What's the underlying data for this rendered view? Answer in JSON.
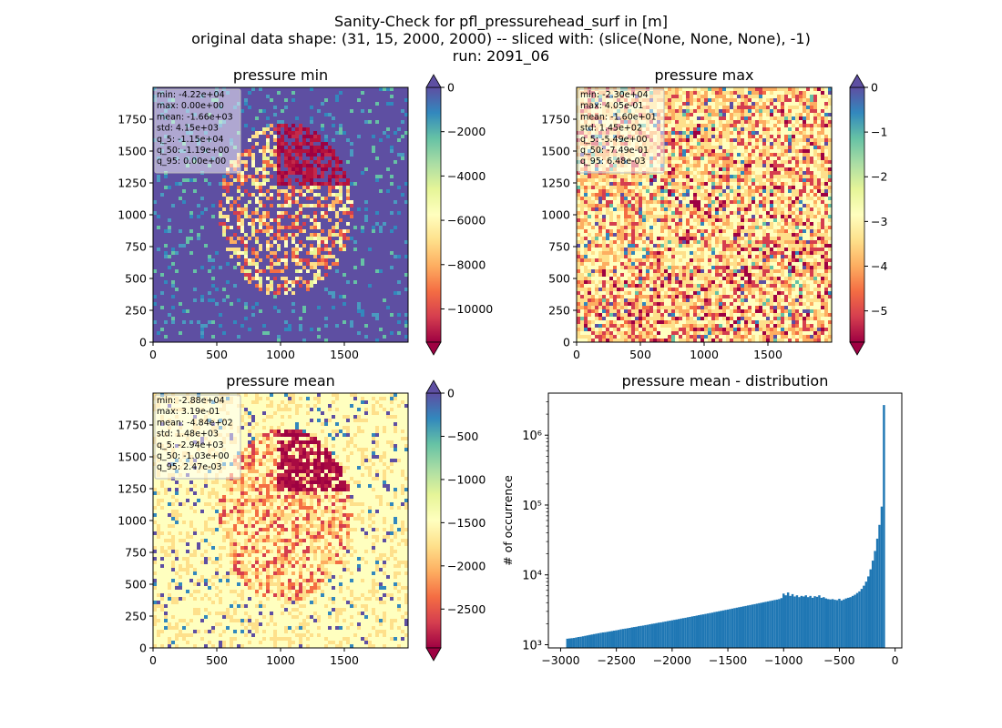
{
  "figure": {
    "title_lines": [
      "Sanity-Check for pfl_pressurehead_surf in [m]",
      "original data shape: (31, 15, 2000, 2000) -- sliced with: (slice(None, None, None), -1)",
      "run: 2091_06"
    ]
  },
  "chart_data": [
    {
      "type": "heatmap",
      "title": "pressure min",
      "xlim": [
        0,
        2000
      ],
      "ylim": [
        0,
        2000
      ],
      "xticks": [
        0,
        500,
        1000,
        1500
      ],
      "yticks": [
        0,
        250,
        500,
        750,
        1000,
        1250,
        1500,
        1750
      ],
      "colormap": "Spectral",
      "colorbar": {
        "min": -11500,
        "max": 0,
        "ticks": [
          0,
          -2000,
          -4000,
          -6000,
          -8000,
          -10000
        ],
        "tick_labels": [
          "0",
          "−2000",
          "−4000",
          "−6000",
          "−8000",
          "−10000"
        ],
        "extend": "both"
      },
      "stats": [
        "min: -4.22e+04",
        "max: 0.00e+00",
        "mean: -1.66e+03",
        "std: 4.15e+03",
        "q_5: -1.15e+04",
        "q_50: -1.19e+00",
        "q_95: 0.00e+00"
      ]
    },
    {
      "type": "heatmap",
      "title": "pressure max",
      "xlim": [
        0,
        2000
      ],
      "ylim": [
        0,
        2000
      ],
      "xticks": [
        0,
        500,
        1000,
        1500
      ],
      "yticks": [
        0,
        250,
        500,
        750,
        1000,
        1250,
        1500,
        1750
      ],
      "colormap": "Spectral",
      "colorbar": {
        "min": -5.7,
        "max": 0,
        "ticks": [
          0,
          -1,
          -2,
          -3,
          -4,
          -5
        ],
        "tick_labels": [
          "0",
          "−1",
          "−2",
          "−3",
          "−4",
          "−5"
        ],
        "extend": "both"
      },
      "stats": [
        "min: -2.30e+04",
        "max: 4.05e-01",
        "mean: -1.60e+01",
        "std: 1.45e+02",
        "q_5: -5.49e+00",
        "q_50: -7.49e-01",
        "q_95: 6.48e-03"
      ]
    },
    {
      "type": "heatmap",
      "title": "pressure mean",
      "xlim": [
        0,
        2000
      ],
      "ylim": [
        0,
        2000
      ],
      "xticks": [
        0,
        500,
        1000,
        1500
      ],
      "yticks": [
        0,
        250,
        500,
        750,
        1000,
        1250,
        1500,
        1750
      ],
      "colormap": "Spectral",
      "colorbar": {
        "min": -2950,
        "max": 0,
        "ticks": [
          0,
          -500,
          -1000,
          -1500,
          -2000,
          -2500
        ],
        "tick_labels": [
          "0",
          "−500",
          "−1000",
          "−1500",
          "−2000",
          "−2500"
        ],
        "extend": "both"
      },
      "stats": [
        "min: -2.88e+04",
        "max: 3.19e-01",
        "mean: -4.84e+02",
        "std: 1.48e+03",
        "q_5: -2.94e+03",
        "q_50: -1.03e+00",
        "q_95: 2.47e-03"
      ]
    },
    {
      "type": "bar",
      "title": "pressure mean - distribution",
      "ylabel": "# of occurrence",
      "xlabel": "",
      "yscale": "log",
      "xlim": [
        -3110,
        60
      ],
      "ylim": [
        900,
        4000000
      ],
      "xticks": [
        -3000,
        -2500,
        -2000,
        -1500,
        -1000,
        -500,
        0
      ],
      "xtick_labels": [
        "−3000",
        "−2500",
        "−2000",
        "−1500",
        "−1000",
        "−500",
        "0"
      ],
      "yticks": [
        1000,
        10000,
        100000,
        1000000
      ],
      "ytick_labels": [
        "10³",
        "10⁴",
        "10⁵",
        "10⁶"
      ],
      "color": "#1f77b4",
      "bin_width": 20,
      "bin_starts": [
        -2950,
        -2930,
        -2910,
        -2890,
        -2870,
        -2850,
        -2830,
        -2810,
        -2790,
        -2770,
        -2750,
        -2730,
        -2710,
        -2690,
        -2670,
        -2650,
        -2630,
        -2610,
        -2590,
        -2570,
        -2550,
        -2530,
        -2510,
        -2490,
        -2470,
        -2450,
        -2430,
        -2410,
        -2390,
        -2370,
        -2350,
        -2330,
        -2310,
        -2290,
        -2270,
        -2250,
        -2230,
        -2210,
        -2190,
        -2170,
        -2150,
        -2130,
        -2110,
        -2090,
        -2070,
        -2050,
        -2030,
        -2010,
        -1990,
        -1970,
        -1950,
        -1930,
        -1910,
        -1890,
        -1870,
        -1850,
        -1830,
        -1810,
        -1790,
        -1770,
        -1750,
        -1730,
        -1710,
        -1690,
        -1670,
        -1650,
        -1630,
        -1610,
        -1590,
        -1570,
        -1550,
        -1530,
        -1510,
        -1490,
        -1470,
        -1450,
        -1430,
        -1410,
        -1390,
        -1370,
        -1350,
        -1330,
        -1310,
        -1290,
        -1270,
        -1250,
        -1230,
        -1210,
        -1190,
        -1170,
        -1150,
        -1130,
        -1110,
        -1090,
        -1070,
        -1050,
        -1030,
        -1010,
        -990,
        -970,
        -950,
        -930,
        -910,
        -890,
        -870,
        -850,
        -830,
        -810,
        -790,
        -770,
        -750,
        -730,
        -710,
        -690,
        -670,
        -650,
        -630,
        -610,
        -590,
        -570,
        -550,
        -530,
        -510,
        -490,
        -470,
        -450,
        -430,
        -410,
        -390,
        -370,
        -350,
        -330,
        -310,
        -290,
        -270,
        -250,
        -230,
        -210,
        -190,
        -170,
        -150,
        -130,
        -110,
        -90,
        -70,
        -50,
        -30,
        -10
      ],
      "counts": [
        1220,
        1230,
        1240,
        1250,
        1270,
        1290,
        1300,
        1320,
        1340,
        1360,
        1380,
        1400,
        1420,
        1440,
        1460,
        1480,
        1500,
        1510,
        1530,
        1550,
        1570,
        1590,
        1610,
        1630,
        1660,
        1680,
        1700,
        1720,
        1740,
        1770,
        1790,
        1810,
        1840,
        1860,
        1880,
        1910,
        1930,
        1960,
        1990,
        2010,
        2040,
        2070,
        2090,
        2120,
        2150,
        2180,
        2210,
        2240,
        2270,
        2300,
        2330,
        2370,
        2400,
        2430,
        2470,
        2500,
        2540,
        2570,
        2610,
        2650,
        2690,
        2720,
        2760,
        2800,
        2840,
        2880,
        2930,
        2970,
        3010,
        3060,
        3100,
        3150,
        3190,
        3240,
        3290,
        3340,
        3390,
        3440,
        3490,
        3540,
        3590,
        3650,
        3700,
        3760,
        3810,
        3870,
        3930,
        3990,
        4050,
        4110,
        4170,
        4240,
        4300,
        4370,
        4430,
        4500,
        4650,
        5400,
        5100,
        5600,
        5000,
        5300,
        4900,
        5100,
        4800,
        5000,
        4900,
        5100,
        4800,
        5000,
        4700,
        4950,
        4850,
        5100,
        4700,
        4800,
        4600,
        4500,
        4450,
        4500,
        4400,
        4350,
        4550,
        4300,
        4450,
        4600,
        4700,
        4800,
        5000,
        5200,
        5500,
        5800,
        6300,
        7000,
        8000,
        9500,
        12000,
        16000,
        22000,
        33000,
        52000,
        95000,
        2700000
      ]
    }
  ]
}
